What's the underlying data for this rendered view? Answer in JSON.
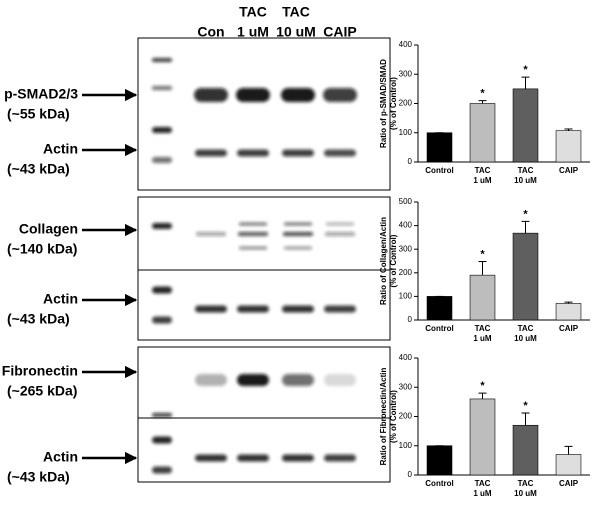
{
  "blots": {
    "lane_labels": [
      [
        "Con"
      ],
      [
        "TAC",
        "1 uM"
      ],
      [
        "TAC",
        "10 uM"
      ],
      [
        "CAIP"
      ]
    ],
    "rows": [
      {
        "label": "p-SMAD2/3",
        "size": "(~55 kDa)"
      },
      {
        "label": "Actin",
        "size": "(~43 kDa)"
      },
      {
        "label": "Collagen",
        "size": "(~140 kDa)"
      },
      {
        "label": "Actin",
        "size": "(~43 kDa)"
      },
      {
        "label": "Fibronectin",
        "size": "(~265 kDa)"
      },
      {
        "label": "Actin",
        "size": "(~43 kDa)"
      }
    ]
  },
  "chart_data": [
    {
      "type": "bar",
      "ylabel": [
        "Ratio of p-SMAD/SMAD",
        "(% of Control)"
      ],
      "categories": [
        [
          "Control"
        ],
        [
          "TAC",
          "1 uM"
        ],
        [
          "TAC",
          "10 uM"
        ],
        [
          "CAIP"
        ]
      ],
      "values": [
        100,
        200,
        250,
        107
      ],
      "errors": [
        0,
        10,
        40,
        6
      ],
      "colors": [
        "#000000",
        "#bdbdbd",
        "#5f5f5f",
        "#dedede"
      ],
      "annotations": [
        {
          "text": "*",
          "index": 1
        },
        {
          "text": "*",
          "index": 2
        }
      ],
      "ylim": [
        0,
        400
      ],
      "yticks": [
        0,
        100,
        200,
        300,
        400
      ]
    },
    {
      "type": "bar",
      "ylabel": [
        "Ratio of Collagen/Actin",
        "(% of Control)"
      ],
      "categories": [
        [
          "Control"
        ],
        [
          "TAC",
          "1 uM"
        ],
        [
          "TAC",
          "10 uM"
        ],
        [
          "CAIP"
        ]
      ],
      "values": [
        100,
        190,
        368,
        70
      ],
      "errors": [
        0,
        58,
        50,
        6
      ],
      "colors": [
        "#000000",
        "#bdbdbd",
        "#5f5f5f",
        "#dedede"
      ],
      "annotations": [
        {
          "text": "*",
          "index": 1
        },
        {
          "text": "*",
          "index": 2
        }
      ],
      "ylim": [
        0,
        500
      ],
      "yticks": [
        0,
        100,
        200,
        300,
        400,
        500
      ]
    },
    {
      "type": "bar",
      "ylabel": [
        "Ratio of Fibronectin/Actin",
        "(% of Control)"
      ],
      "categories": [
        [
          "Control"
        ],
        [
          "TAC",
          "1 uM"
        ],
        [
          "TAC",
          "10 uM"
        ],
        [
          "CAIP"
        ]
      ],
      "values": [
        100,
        260,
        170,
        70
      ],
      "errors": [
        0,
        20,
        42,
        28
      ],
      "colors": [
        "#000000",
        "#bdbdbd",
        "#5f5f5f",
        "#dedede"
      ],
      "annotations": [
        {
          "text": "*",
          "index": 1
        },
        {
          "text": "*",
          "index": 2
        }
      ],
      "ylim": [
        0,
        400
      ],
      "yticks": [
        0,
        100,
        200,
        300,
        400
      ]
    }
  ]
}
